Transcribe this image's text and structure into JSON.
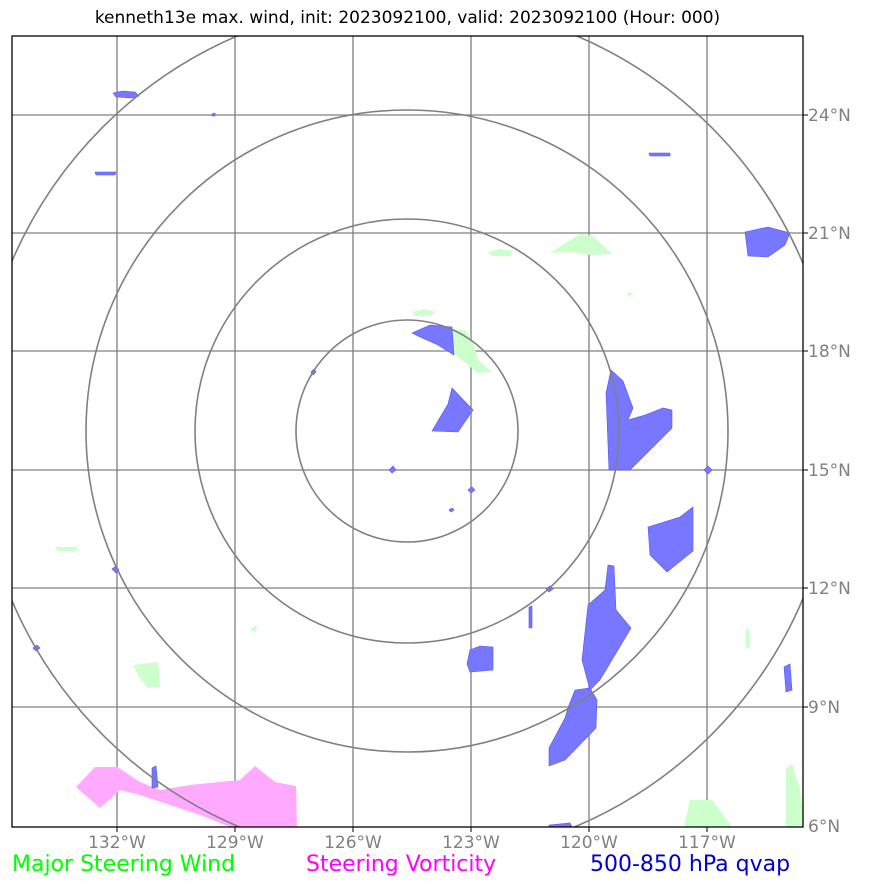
{
  "title": "kenneth13e max. wind, init: 2023092100, valid: 2023092100 (Hour: 000)",
  "lon_labels": [
    "132°W",
    "129°W",
    "126°W",
    "123°W",
    "120°W",
    "117°W"
  ],
  "lat_labels": [
    "24°N",
    "21°N",
    "18°N",
    "15°N",
    "12°N",
    "9°N",
    "6°N"
  ],
  "legend": {
    "wind": "Major Steering Wind",
    "vorticity": "Steering Vorticity",
    "qvap": "500-850 hPa qvap"
  },
  "colors": {
    "wind": "#00ff00",
    "vorticity": "#ff00ff",
    "qvap": "#0000cc",
    "wind_fill": "#ccffcc",
    "vorticity_fill": "#ffaaff",
    "qvap_fill": "#6666ff",
    "grid": "#808080"
  }
}
